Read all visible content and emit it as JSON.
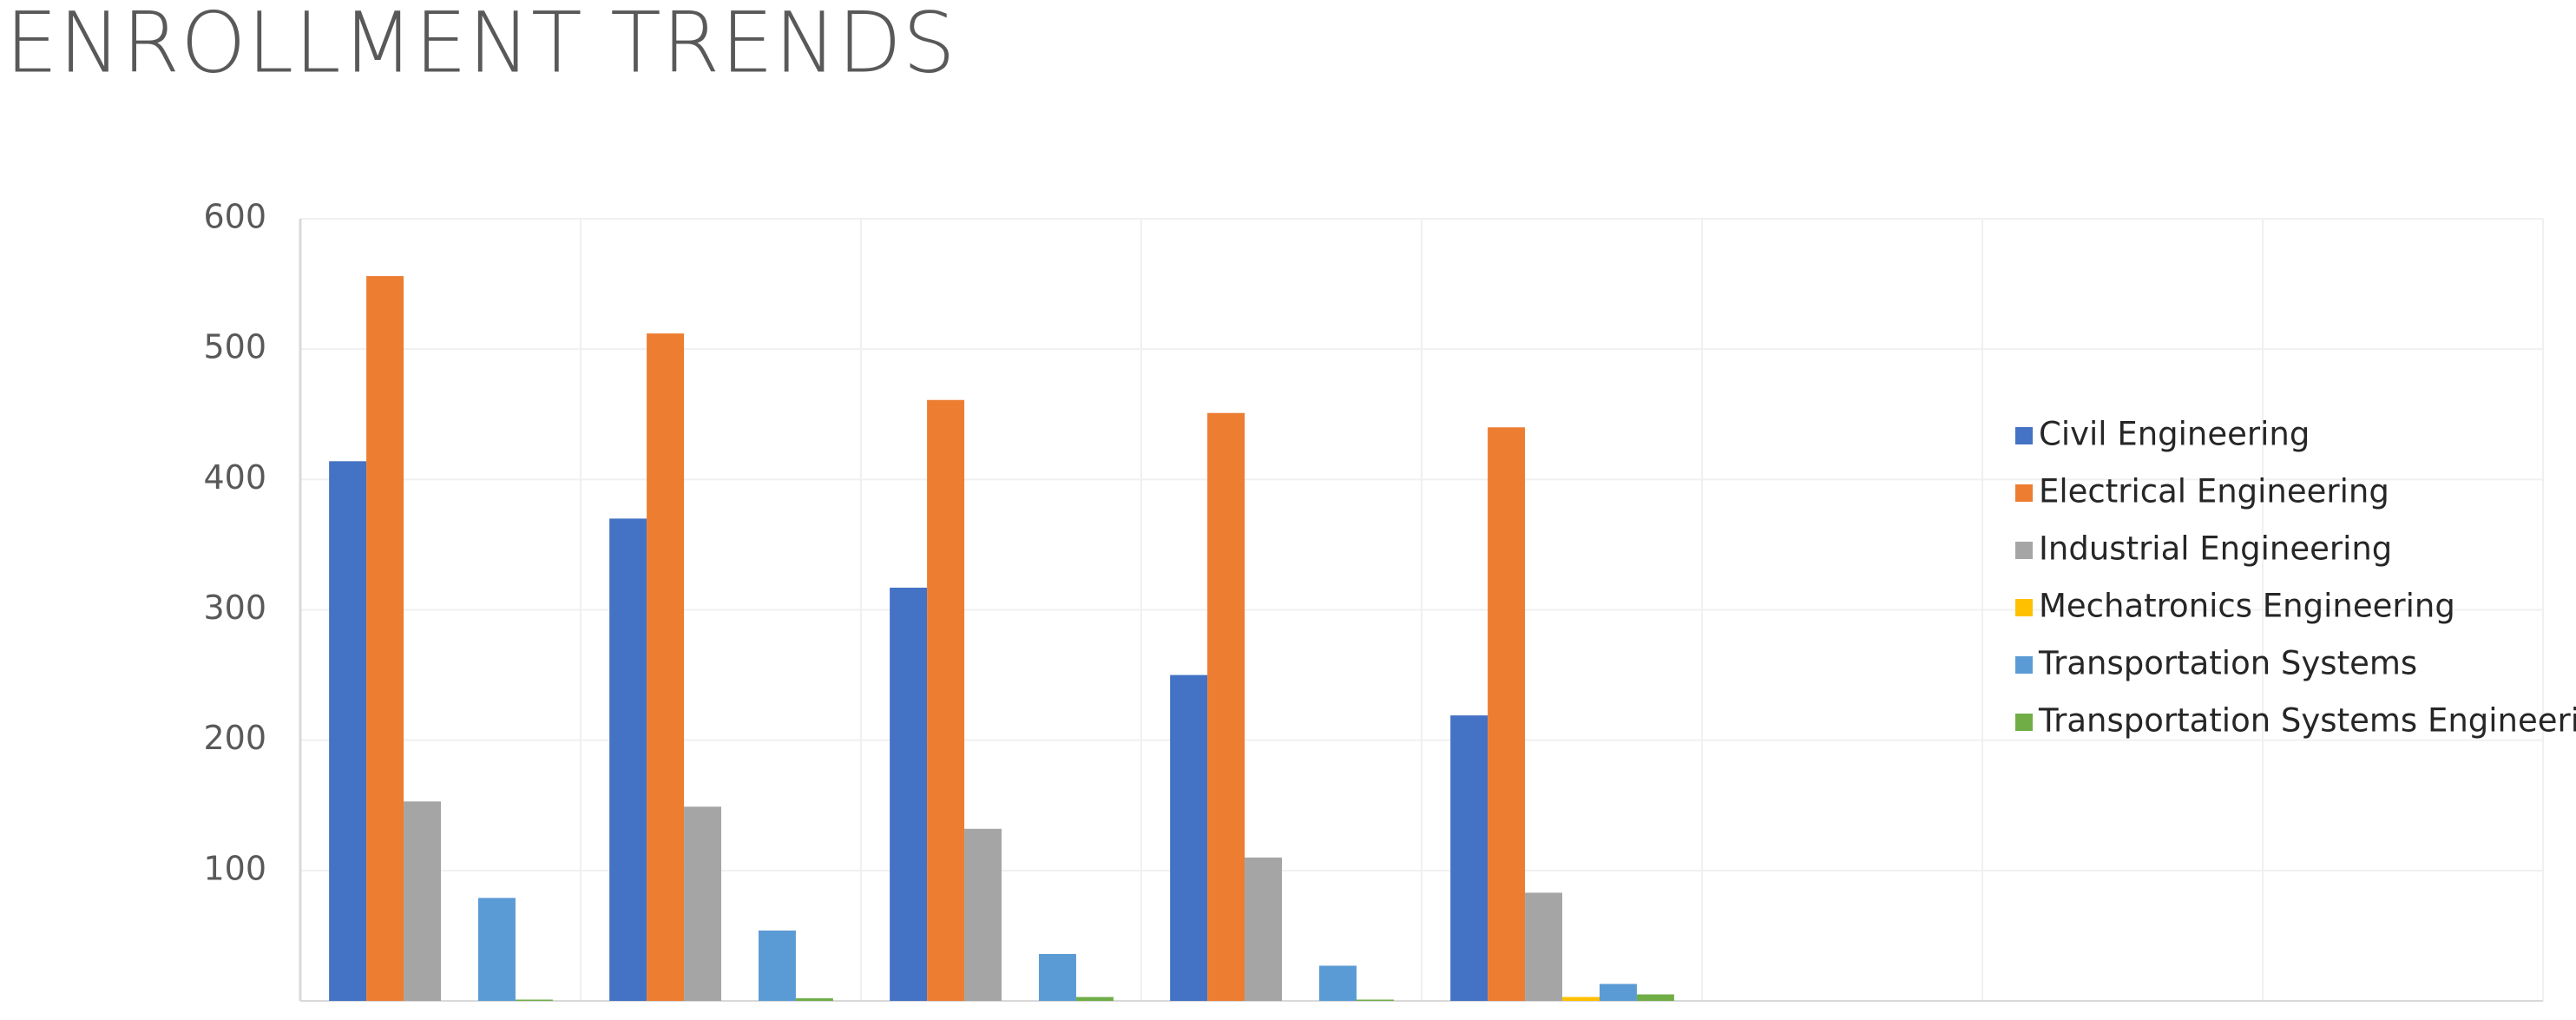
{
  "chart_data": {
    "type": "bar",
    "title": "ENROLLMENT TRENDS",
    "categories": [
      null,
      null,
      null,
      null,
      null,
      null,
      null,
      null
    ],
    "series": [
      {
        "name": "Civil Engineering",
        "color": "#4472c4",
        "values": [
          414,
          370,
          317,
          250,
          219,
          null,
          null,
          null
        ]
      },
      {
        "name": "Electrical Engineering",
        "color": "#ed7d31",
        "values": [
          556,
          512,
          461,
          451,
          440,
          null,
          null,
          null
        ]
      },
      {
        "name": "Industrial Engineering",
        "color": "#a5a5a5",
        "values": [
          153,
          149,
          132,
          110,
          83,
          null,
          null,
          null
        ]
      },
      {
        "name": "Mechatronics Engineering",
        "color": "#ffc000",
        "values": [
          0,
          0,
          0,
          0,
          3,
          null,
          null,
          null
        ]
      },
      {
        "name": "Transportation Systems",
        "color": "#5b9bd5",
        "values": [
          79,
          54,
          36,
          27,
          13,
          null,
          null,
          null
        ]
      },
      {
        "name": "Transportation Systems Engineering",
        "color": "#70ad47",
        "values": [
          1,
          2,
          3,
          1,
          5,
          null,
          null,
          null
        ]
      }
    ],
    "ylim": [
      0,
      600
    ],
    "yticks": [
      100,
      200,
      300,
      400,
      500,
      600
    ],
    "grid": true,
    "legend": "right"
  }
}
